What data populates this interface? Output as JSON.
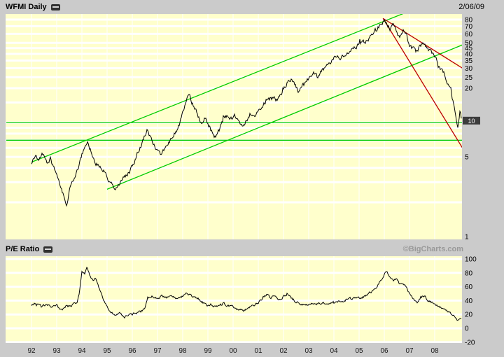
{
  "header": {
    "title": "WFMI Daily",
    "date": "2/06/09"
  },
  "pe_header": {
    "title": "P/E Ratio",
    "watermark": "©BigCharts.com"
  },
  "colors": {
    "page_bg": "#cbcbcb",
    "chart_bg": "#ffffcc",
    "grid": "#ffffff",
    "price_line": "#000000",
    "trend_green": "#00cc00",
    "trend_red": "#bb0000",
    "axis_text": "#000000",
    "tick_label": "#1a1a1a",
    "watermark": "#999999",
    "highlight_bg": "#3d3d3d",
    "highlight_text": "#ffffff"
  },
  "chart_data": [
    {
      "type": "line",
      "name": "WFMI daily closing price",
      "yscale": "log",
      "ylim": [
        1,
        90
      ],
      "yticks": [
        80,
        70,
        60,
        50,
        45,
        40,
        35,
        30,
        25,
        20,
        10,
        5,
        1
      ],
      "gridlines": [
        2,
        3,
        4,
        5,
        6,
        7,
        8,
        9,
        10,
        15,
        20,
        25,
        30,
        35,
        40,
        45,
        50,
        60,
        70,
        80
      ],
      "x_tick_labels": [
        "92",
        "93",
        "94",
        "95",
        "96",
        "97",
        "98",
        "99",
        "00",
        "01",
        "02",
        "03",
        "04",
        "05",
        "06",
        "07",
        "08"
      ],
      "xlim": [
        1991.0,
        2009.1
      ],
      "last_price": 10.4,
      "last_price_label": "10",
      "points": [
        [
          1992.0,
          4.3
        ],
        [
          1992.15,
          5.1
        ],
        [
          1992.3,
          4.6
        ],
        [
          1992.45,
          5.3
        ],
        [
          1992.6,
          4.5
        ],
        [
          1992.75,
          4.8
        ],
        [
          1992.9,
          3.9
        ],
        [
          1993.0,
          3.5
        ],
        [
          1993.15,
          2.8
        ],
        [
          1993.3,
          2.2
        ],
        [
          1993.4,
          1.9
        ],
        [
          1993.55,
          2.9
        ],
        [
          1993.7,
          3.3
        ],
        [
          1993.85,
          4.1
        ],
        [
          1994.0,
          5.2
        ],
        [
          1994.15,
          6.1
        ],
        [
          1994.25,
          6.6
        ],
        [
          1994.4,
          5.3
        ],
        [
          1994.55,
          4.5
        ],
        [
          1994.7,
          4.1
        ],
        [
          1994.85,
          3.8
        ],
        [
          1995.0,
          3.3
        ],
        [
          1995.15,
          2.95
        ],
        [
          1995.3,
          2.6
        ],
        [
          1995.45,
          2.8
        ],
        [
          1995.6,
          3.2
        ],
        [
          1995.75,
          3.45
        ],
        [
          1995.9,
          3.7
        ],
        [
          1996.05,
          4.3
        ],
        [
          1996.2,
          5.4
        ],
        [
          1996.35,
          6.3
        ],
        [
          1996.5,
          7.6
        ],
        [
          1996.6,
          9.0
        ],
        [
          1996.72,
          7.4
        ],
        [
          1996.85,
          6.4
        ],
        [
          1997.0,
          5.6
        ],
        [
          1997.12,
          5.2
        ],
        [
          1997.25,
          5.7
        ],
        [
          1997.4,
          6.4
        ],
        [
          1997.55,
          7.2
        ],
        [
          1997.7,
          8.2
        ],
        [
          1997.85,
          9.4
        ],
        [
          1998.0,
          12.5
        ],
        [
          1998.12,
          14.8
        ],
        [
          1998.25,
          18.0
        ],
        [
          1998.35,
          15.2
        ],
        [
          1998.5,
          13.0
        ],
        [
          1998.62,
          11.4
        ],
        [
          1998.75,
          9.7
        ],
        [
          1998.87,
          11.0
        ],
        [
          1999.0,
          9.8
        ],
        [
          1999.15,
          8.3
        ],
        [
          1999.3,
          7.5
        ],
        [
          1999.45,
          8.6
        ],
        [
          1999.6,
          10.6
        ],
        [
          1999.75,
          11.3
        ],
        [
          1999.9,
          10.4
        ],
        [
          2000.05,
          11.5
        ],
        [
          2000.2,
          10.3
        ],
        [
          2000.35,
          9.3
        ],
        [
          2000.5,
          10.2
        ],
        [
          2000.65,
          11.6
        ],
        [
          2000.8,
          11.0
        ],
        [
          2000.95,
          12.0
        ],
        [
          2001.1,
          13.6
        ],
        [
          2001.25,
          14.8
        ],
        [
          2001.4,
          15.6
        ],
        [
          2001.55,
          16.9
        ],
        [
          2001.7,
          15.7
        ],
        [
          2001.85,
          17.2
        ],
        [
          2002.0,
          19.6
        ],
        [
          2002.15,
          22.2
        ],
        [
          2002.3,
          23.8
        ],
        [
          2002.45,
          21.4
        ],
        [
          2002.6,
          18.8
        ],
        [
          2002.75,
          20.4
        ],
        [
          2002.9,
          22.6
        ],
        [
          2003.05,
          25.2
        ],
        [
          2003.2,
          27.2
        ],
        [
          2003.35,
          25.4
        ],
        [
          2003.5,
          27.8
        ],
        [
          2003.65,
          29.8
        ],
        [
          2003.8,
          31.6
        ],
        [
          2003.95,
          34.8
        ],
        [
          2004.1,
          38.8
        ],
        [
          2004.25,
          36.2
        ],
        [
          2004.4,
          38.4
        ],
        [
          2004.55,
          41.2
        ],
        [
          2004.7,
          43.6
        ],
        [
          2004.85,
          45.8
        ],
        [
          2005.0,
          49.2
        ],
        [
          2005.12,
          52.4
        ],
        [
          2005.25,
          50.2
        ],
        [
          2005.4,
          54.6
        ],
        [
          2005.55,
          60.4
        ],
        [
          2005.7,
          66.2
        ],
        [
          2005.85,
          72.6
        ],
        [
          2006.0,
          78.8
        ],
        [
          2006.1,
          72.2
        ],
        [
          2006.22,
          66.4
        ],
        [
          2006.35,
          71.2
        ],
        [
          2006.5,
          63.8
        ],
        [
          2006.62,
          58.4
        ],
        [
          2006.75,
          64.2
        ],
        [
          2006.87,
          59.6
        ],
        [
          2007.0,
          48.2
        ],
        [
          2007.12,
          44.6
        ],
        [
          2007.25,
          41.8
        ],
        [
          2007.4,
          46.2
        ],
        [
          2007.55,
          49.0
        ],
        [
          2007.7,
          44.8
        ],
        [
          2007.85,
          41.4
        ],
        [
          2008.0,
          38.2
        ],
        [
          2008.12,
          33.4
        ],
        [
          2008.25,
          29.8
        ],
        [
          2008.4,
          26.6
        ],
        [
          2008.52,
          21.4
        ],
        [
          2008.64,
          19.6
        ],
        [
          2008.75,
          14.4
        ],
        [
          2008.85,
          10.8
        ],
        [
          2008.92,
          9.2
        ],
        [
          2009.0,
          12.6
        ],
        [
          2009.08,
          10.4
        ]
      ],
      "trendlines": [
        {
          "color": "green",
          "x1": 1992.0,
          "y1": 4.5,
          "x2": 2007.0,
          "y2": 95
        },
        {
          "color": "green",
          "x1": 1995.0,
          "y1": 2.6,
          "x2": 2009.1,
          "y2": 48
        },
        {
          "color": "green",
          "x1": 1991.0,
          "y1": 10,
          "x2": 2009.1,
          "y2": 10
        },
        {
          "color": "green",
          "x1": 1991.0,
          "y1": 7,
          "x2": 2009.1,
          "y2": 7
        },
        {
          "color": "red",
          "x1": 2005.95,
          "y1": 82,
          "x2": 2009.1,
          "y2": 30
        },
        {
          "color": "red",
          "x1": 2005.95,
          "y1": 82,
          "x2": 2009.1,
          "y2": 6
        }
      ]
    },
    {
      "type": "line",
      "name": "P/E Ratio",
      "yscale": "linear",
      "ylim": [
        -20,
        104
      ],
      "yticks": [
        100,
        80,
        60,
        40,
        20,
        0,
        -20
      ],
      "points": [
        [
          1992.0,
          33
        ],
        [
          1992.2,
          37
        ],
        [
          1992.4,
          31
        ],
        [
          1992.6,
          35
        ],
        [
          1992.8,
          30
        ],
        [
          1993.0,
          32
        ],
        [
          1993.2,
          27
        ],
        [
          1993.4,
          30
        ],
        [
          1993.6,
          33
        ],
        [
          1993.8,
          38
        ],
        [
          1993.9,
          52
        ],
        [
          1994.0,
          82
        ],
        [
          1994.1,
          75
        ],
        [
          1994.2,
          87
        ],
        [
          1994.3,
          78
        ],
        [
          1994.45,
          68
        ],
        [
          1994.55,
          72
        ],
        [
          1994.7,
          55
        ],
        [
          1994.85,
          42
        ],
        [
          1995.0,
          30
        ],
        [
          1995.15,
          24
        ],
        [
          1995.3,
          19
        ],
        [
          1995.5,
          21
        ],
        [
          1995.7,
          17
        ],
        [
          1995.9,
          19
        ],
        [
          1996.1,
          21
        ],
        [
          1996.3,
          24
        ],
        [
          1996.5,
          28
        ],
        [
          1996.62,
          43
        ],
        [
          1996.8,
          46
        ],
        [
          1997.0,
          44
        ],
        [
          1997.2,
          47
        ],
        [
          1997.4,
          44
        ],
        [
          1997.6,
          46
        ],
        [
          1997.8,
          43
        ],
        [
          1998.0,
          46
        ],
        [
          1998.2,
          50
        ],
        [
          1998.4,
          46
        ],
        [
          1998.6,
          41
        ],
        [
          1998.8,
          37
        ],
        [
          1999.0,
          33
        ],
        [
          1999.2,
          30
        ],
        [
          1999.4,
          32
        ],
        [
          1999.6,
          36
        ],
        [
          1999.8,
          33
        ],
        [
          2000.0,
          31
        ],
        [
          2000.2,
          28
        ],
        [
          2000.4,
          26
        ],
        [
          2000.6,
          29
        ],
        [
          2000.8,
          32
        ],
        [
          2001.0,
          37
        ],
        [
          2001.2,
          45
        ],
        [
          2001.35,
          49
        ],
        [
          2001.5,
          43
        ],
        [
          2001.65,
          47
        ],
        [
          2001.8,
          41
        ],
        [
          2002.0,
          46
        ],
        [
          2002.15,
          50
        ],
        [
          2002.3,
          44
        ],
        [
          2002.5,
          38
        ],
        [
          2002.7,
          35
        ],
        [
          2002.9,
          33
        ],
        [
          2003.1,
          36
        ],
        [
          2003.3,
          34
        ],
        [
          2003.5,
          37
        ],
        [
          2003.7,
          35
        ],
        [
          2003.9,
          38
        ],
        [
          2004.1,
          40
        ],
        [
          2004.3,
          38
        ],
        [
          2004.5,
          41
        ],
        [
          2004.7,
          43
        ],
        [
          2004.9,
          45
        ],
        [
          2005.1,
          44
        ],
        [
          2005.3,
          47
        ],
        [
          2005.5,
          52
        ],
        [
          2005.7,
          60
        ],
        [
          2005.85,
          68
        ],
        [
          2006.0,
          78
        ],
        [
          2006.1,
          81
        ],
        [
          2006.2,
          74
        ],
        [
          2006.35,
          68
        ],
        [
          2006.5,
          71
        ],
        [
          2006.62,
          63
        ],
        [
          2006.75,
          66
        ],
        [
          2006.9,
          58
        ],
        [
          2007.0,
          50
        ],
        [
          2007.15,
          43
        ],
        [
          2007.3,
          38
        ],
        [
          2007.45,
          43
        ],
        [
          2007.6,
          45
        ],
        [
          2007.75,
          40
        ],
        [
          2007.9,
          37
        ],
        [
          2008.05,
          34
        ],
        [
          2008.2,
          31
        ],
        [
          2008.4,
          28
        ],
        [
          2008.6,
          23
        ],
        [
          2008.8,
          17
        ],
        [
          2008.9,
          11
        ],
        [
          2009.0,
          15
        ],
        [
          2009.08,
          13
        ]
      ]
    }
  ]
}
